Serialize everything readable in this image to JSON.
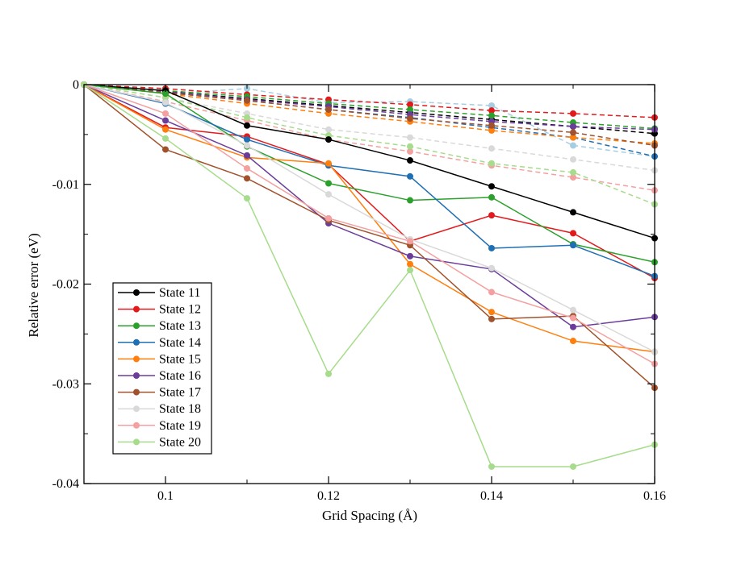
{
  "chart_data": {
    "type": "line",
    "title": "",
    "xlabel": "Grid Spacing (Å)",
    "ylabel": "Relative error (eV)",
    "xlim": [
      0.09,
      0.16
    ],
    "ylim": [
      -0.04,
      0
    ],
    "x_ticks": [
      0.1,
      0.12,
      0.14,
      0.16
    ],
    "x_tick_labels": [
      "0.1",
      "0.12",
      "0.14",
      "0.16"
    ],
    "y_ticks": [
      0,
      -0.01,
      -0.02,
      -0.03,
      -0.04
    ],
    "y_tick_labels": [
      "0",
      "-0.01",
      "-0.02",
      "-0.03",
      "-0.04"
    ],
    "x": [
      0.09,
      0.1,
      0.11,
      0.12,
      0.13,
      0.14,
      0.15,
      0.16
    ],
    "legend_position": "bottom-left",
    "series": [
      {
        "name": "State 11",
        "color": "#000000",
        "solid": [
          0,
          -0.0006,
          -0.0041,
          -0.0055,
          -0.0076,
          -0.0102,
          -0.0128,
          -0.0154
        ],
        "dashed": [
          0,
          -0.0007,
          -0.0014,
          -0.0021,
          -0.0028,
          -0.0035,
          -0.0042,
          -0.0049
        ]
      },
      {
        "name": "State 12",
        "color": "#e31a1c",
        "solid": [
          0,
          -0.0043,
          -0.0052,
          -0.008,
          -0.0157,
          -0.0131,
          -0.0149,
          -0.0194
        ],
        "dashed": [
          0,
          -0.0004,
          -0.001,
          -0.0015,
          -0.002,
          -0.0026,
          -0.0029,
          -0.0033
        ]
      },
      {
        "name": "State 13",
        "color": "#2ca02c",
        "solid": [
          0,
          -0.0009,
          -0.0062,
          -0.0099,
          -0.0116,
          -0.0113,
          -0.016,
          -0.0178
        ],
        "dashed": [
          0,
          -0.0006,
          -0.0012,
          -0.0019,
          -0.0025,
          -0.0031,
          -0.0038,
          -0.0044
        ]
      },
      {
        "name": "State 14",
        "color": "#1f6fb4",
        "solid": [
          0,
          -0.0019,
          -0.0055,
          -0.0081,
          -0.0092,
          -0.0164,
          -0.0161,
          -0.0192
        ],
        "dashed": [
          0,
          -0.0008,
          -0.0016,
          -0.0025,
          -0.0033,
          -0.0043,
          -0.0053,
          -0.0072
        ]
      },
      {
        "name": "State 15",
        "color": "#ff7f0e",
        "solid": [
          0,
          -0.0045,
          -0.0073,
          -0.0079,
          -0.018,
          -0.0228,
          -0.0257,
          -0.0268
        ],
        "dashed": [
          0,
          -0.0009,
          -0.0019,
          -0.0029,
          -0.0037,
          -0.0046,
          -0.0053,
          -0.0059
        ]
      },
      {
        "name": "State 16",
        "color": "#6a3d9a",
        "solid": [
          0,
          -0.0036,
          -0.0071,
          -0.0139,
          -0.0172,
          -0.0185,
          -0.0243,
          -0.0233
        ],
        "dashed": [
          0,
          -0.0007,
          -0.0015,
          -0.0022,
          -0.003,
          -0.0037,
          -0.0042,
          -0.0045
        ]
      },
      {
        "name": "State 17",
        "color": "#a0522d",
        "solid": [
          0,
          -0.0065,
          -0.0094,
          -0.0136,
          -0.0161,
          -0.0235,
          -0.0232,
          -0.0304
        ],
        "dashed": [
          0,
          -0.0008,
          -0.0016,
          -0.0025,
          -0.0034,
          -0.0041,
          -0.0048,
          -0.0061
        ]
      },
      {
        "name": "State 18",
        "color": "#d9d9d9",
        "solid": [
          0,
          -0.0018,
          -0.0061,
          -0.011,
          -0.0155,
          -0.0184,
          -0.0226,
          -0.0268
        ],
        "dashed": [
          0,
          -0.0013,
          -0.0029,
          -0.0045,
          -0.0053,
          -0.0064,
          -0.0075,
          -0.0086
        ]
      },
      {
        "name": "State 19",
        "color": "#f4a0a0",
        "solid": [
          0,
          -0.0029,
          -0.0084,
          -0.0134,
          -0.0157,
          -0.0208,
          -0.0234,
          -0.028
        ],
        "dashed": [
          0,
          -0.0017,
          -0.0036,
          -0.0055,
          -0.0067,
          -0.0081,
          -0.0093,
          -0.0106
        ]
      },
      {
        "name": "State 20",
        "color": "#a6dc8b",
        "solid": [
          0,
          -0.0054,
          -0.0114,
          -0.029,
          -0.0186,
          -0.0383,
          -0.0383,
          -0.0361
        ],
        "dashed": [
          0,
          -0.0013,
          -0.0033,
          -0.0051,
          -0.0062,
          -0.0079,
          -0.0088,
          -0.012
        ]
      }
    ],
    "extra_dashed": [
      {
        "name": "light-blue-dashed",
        "color": "#a6cee3",
        "values": [
          0,
          -0.0009,
          -0.0004,
          -0.0018,
          -0.0017,
          -0.0021,
          -0.0061,
          -0.0072
        ]
      }
    ]
  }
}
